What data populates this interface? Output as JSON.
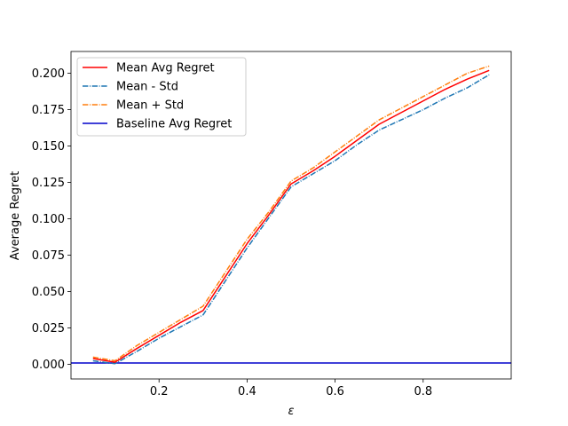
{
  "chart_data": {
    "type": "line",
    "title": "",
    "xlabel": "ε",
    "ylabel": "Average Regret",
    "xlim": [
      0.0,
      1.0
    ],
    "ylim": [
      -0.01,
      0.215
    ],
    "xticks": [
      0.2,
      0.4,
      0.6,
      0.8
    ],
    "xtick_labels": [
      "0.2",
      "0.4",
      "0.6",
      "0.8"
    ],
    "yticks": [
      0.0,
      0.025,
      0.05,
      0.075,
      0.1,
      0.125,
      0.15,
      0.175,
      0.2
    ],
    "ytick_labels": [
      "0.000",
      "0.025",
      "0.050",
      "0.075",
      "0.100",
      "0.125",
      "0.150",
      "0.175",
      "0.200"
    ],
    "grid": false,
    "legend_position": "top-left",
    "x": [
      0.05,
      0.1,
      0.15,
      0.2,
      0.25,
      0.3,
      0.35,
      0.4,
      0.45,
      0.5,
      0.55,
      0.6,
      0.65,
      0.7,
      0.75,
      0.8,
      0.85,
      0.9,
      0.95
    ],
    "series": [
      {
        "name": "Mean Avg Regret",
        "color": "#ff0000",
        "style": "solid",
        "values": [
          0.004,
          0.0015,
          0.011,
          0.02,
          0.029,
          0.037,
          0.06,
          0.083,
          0.103,
          0.124,
          0.133,
          0.143,
          0.154,
          0.165,
          0.173,
          0.181,
          0.189,
          0.196,
          0.202
        ]
      },
      {
        "name": "Mean - Std",
        "color": "#1f77b4",
        "style": "dashdot",
        "values": [
          0.0025,
          0.0005,
          0.009,
          0.018,
          0.026,
          0.034,
          0.057,
          0.08,
          0.101,
          0.122,
          0.131,
          0.14,
          0.151,
          0.161,
          0.168,
          0.175,
          0.183,
          0.19,
          0.199
        ]
      },
      {
        "name": "Mean + Std",
        "color": "#ff7f0e",
        "style": "dashdot",
        "values": [
          0.005,
          0.0025,
          0.013,
          0.022,
          0.031,
          0.04,
          0.063,
          0.086,
          0.105,
          0.126,
          0.135,
          0.146,
          0.157,
          0.168,
          0.176,
          0.184,
          0.192,
          0.2,
          0.205
        ]
      }
    ],
    "baseline": {
      "name": "Baseline Avg Regret",
      "color": "#0000cc",
      "value": 0.001
    }
  }
}
